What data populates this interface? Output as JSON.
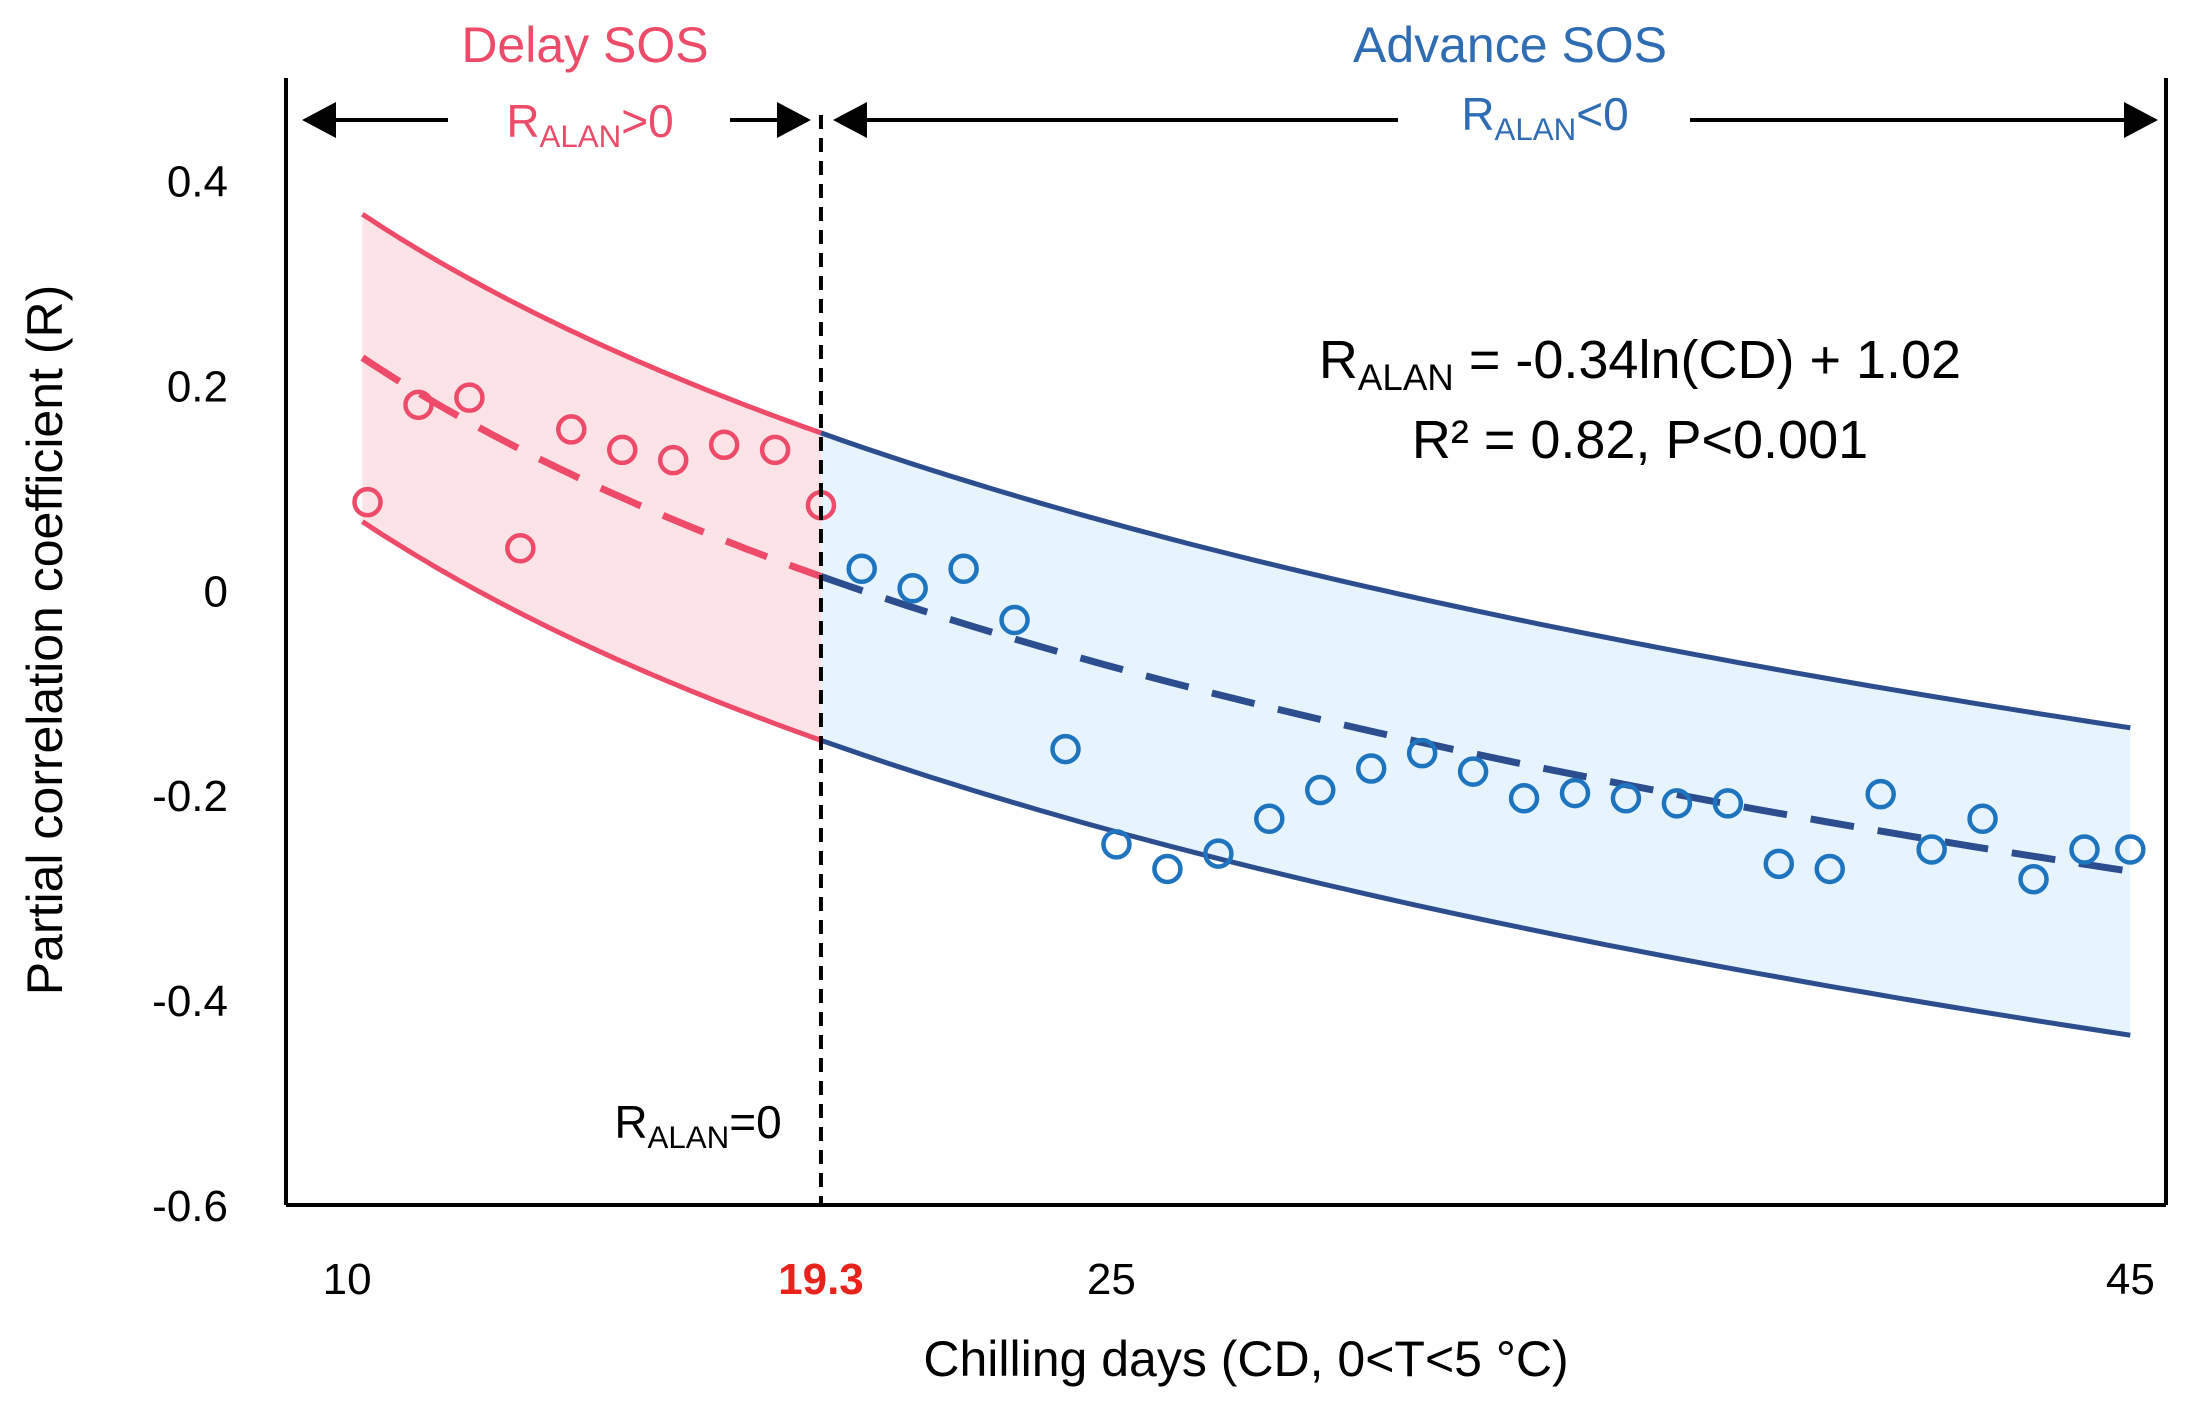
{
  "chart_data": {
    "type": "scatter",
    "xlabel": "Chilling days (CD, 0<T<5 °C)",
    "ylabel": "Partial correlation coefficient (R)",
    "xlim": [
      8.8,
      45.7
    ],
    "ylim": [
      -0.6,
      0.5
    ],
    "x_ticks": [
      {
        "value": 10,
        "label": "10",
        "highlight": false
      },
      {
        "value": 19.3,
        "label": "19.3",
        "highlight": true
      },
      {
        "value": 25,
        "label": "25",
        "highlight": false
      },
      {
        "value": 45,
        "label": "45",
        "highlight": false
      }
    ],
    "y_ticks": [
      {
        "value": 0.4,
        "label": "0.4"
      },
      {
        "value": 0.2,
        "label": "0.2"
      },
      {
        "value": 0,
        "label": "0"
      },
      {
        "value": -0.2,
        "label": "-0.2"
      },
      {
        "value": -0.4,
        "label": "-0.4"
      },
      {
        "value": -0.6,
        "label": "-0.6"
      }
    ],
    "threshold": {
      "x": 19.3,
      "label_main": "R",
      "label_sub": "ALAN",
      "label_tail": "=0"
    },
    "fit": {
      "a": -0.34,
      "b": 1.02,
      "band_upper_offset": 0.14,
      "band_lower_offset": -0.16,
      "x_start": 10.3,
      "x_end": 45
    },
    "equation": {
      "line1_main": "R",
      "line1_sub": "ALAN",
      "line1_tail": " = -0.34ln(CD) + 1.02",
      "line2": "R² = 0.82, P<0.001"
    },
    "regions": [
      {
        "name": "delay",
        "title": "Delay SOS",
        "label_main": "R",
        "label_sub": "ALAN",
        "label_tail": ">0",
        "color": "#ee4b6a",
        "fill": "#fbe3e7"
      },
      {
        "name": "advance",
        "title": "Advance SOS",
        "label_main": "R",
        "label_sub": "ALAN",
        "label_tail": "<0",
        "color": "#2e6db4",
        "fill": "#e8f4fd"
      }
    ],
    "colors": {
      "delay_points": "#ee4b6a",
      "advance_points": "#1f74c0",
      "advance_lines": "#2c4d8e",
      "axes": "#000000",
      "threshold_label": "#e8231d"
    },
    "series": [
      {
        "name": "Delay SOS points",
        "x": [
          10.4,
          11.4,
          12.4,
          13.4,
          14.4,
          15.4,
          16.4,
          17.4,
          18.4,
          19.3
        ],
        "y": [
          0.086,
          0.181,
          0.188,
          0.041,
          0.157,
          0.137,
          0.127,
          0.142,
          0.137,
          0.083
        ]
      },
      {
        "name": "Advance SOS points",
        "x": [
          20.1,
          21.1,
          22.1,
          23.1,
          24.1,
          25.1,
          26.1,
          27.1,
          28.1,
          29.1,
          30.1,
          31.1,
          32.1,
          33.1,
          34.1,
          35.1,
          36.1,
          37.1,
          38.1,
          39.1,
          40.1,
          41.1,
          42.1,
          43.1,
          44.1,
          45.0
        ],
        "y": [
          0.021,
          0.002,
          0.021,
          -0.029,
          -0.155,
          -0.248,
          -0.272,
          -0.257,
          -0.223,
          -0.195,
          -0.174,
          -0.159,
          -0.177,
          -0.203,
          -0.198,
          -0.203,
          -0.208,
          -0.208,
          -0.267,
          -0.272,
          -0.199,
          -0.253,
          -0.223,
          -0.282,
          -0.253,
          -0.253
        ]
      }
    ]
  }
}
